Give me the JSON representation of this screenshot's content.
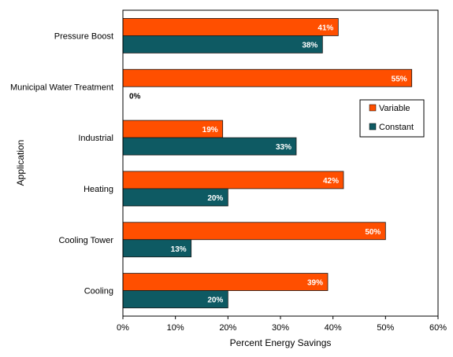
{
  "chart_data": {
    "type": "bar",
    "orientation": "horizontal",
    "categories": [
      "Pressure Boost",
      "Municipal Water Treatment",
      "Industrial",
      "Heating",
      "Cooling Tower",
      "Cooling"
    ],
    "series": [
      {
        "name": "Variable",
        "values": [
          41,
          55,
          19,
          42,
          50,
          39
        ],
        "color": "#FF4F00"
      },
      {
        "name": "Constant",
        "values": [
          38,
          0,
          33,
          20,
          13,
          20
        ],
        "color": "#0E5A63"
      }
    ],
    "data_labels": {
      "Variable": [
        "41%",
        "55%",
        "19%",
        "42%",
        "50%",
        "39%"
      ],
      "Constant": [
        "38%",
        "0%",
        "33%",
        "20%",
        "13%",
        "20%"
      ]
    },
    "xlabel": "Percent Energy Savings",
    "ylabel": "Application",
    "xlim": [
      0,
      60
    ],
    "xticks": [
      "0%",
      "10%",
      "20%",
      "30%",
      "40%",
      "50%",
      "60%"
    ],
    "xtick_values": [
      0,
      10,
      20,
      30,
      40,
      50,
      60
    ],
    "grid": false,
    "legend_position": "right"
  }
}
